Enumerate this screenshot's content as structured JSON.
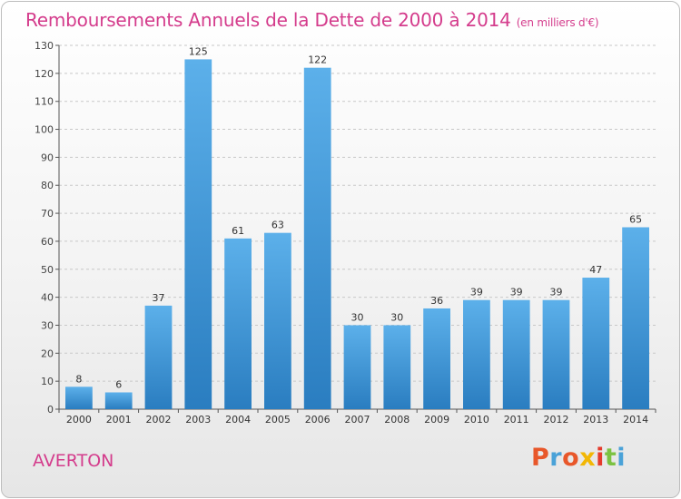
{
  "header": {
    "title": "Remboursements Annuels de la Dette de 2000 à 2014",
    "subtitle": "(en milliers d'€)"
  },
  "footer": {
    "commune": "AVERTON",
    "brand": "Proxiti"
  },
  "colors": {
    "title": "#d43c8c",
    "bar_top": "#5cb0ea",
    "bar_bottom": "#2a7dc0",
    "brand_letters": [
      "#e8572a",
      "#4aa2d8",
      "#e8572a",
      "#f2b705",
      "#e53b2c",
      "#7cc242",
      "#4aa2d8"
    ]
  },
  "chart_data": {
    "type": "bar",
    "title": "Remboursements Annuels de la Dette de 2000 à 2014",
    "subtitle": "(en milliers d'€)",
    "categories": [
      "2000",
      "2001",
      "2002",
      "2003",
      "2004",
      "2005",
      "2006",
      "2007",
      "2008",
      "2009",
      "2010",
      "2011",
      "2012",
      "2013",
      "2014"
    ],
    "values": [
      8,
      6,
      37,
      125,
      61,
      63,
      122,
      30,
      30,
      36,
      39,
      39,
      39,
      47,
      65
    ],
    "data_labels": [
      "8",
      "6",
      "37",
      "125",
      "61",
      "63",
      "122",
      "30",
      "30",
      "36",
      "39",
      "39",
      "39",
      "47",
      "65"
    ],
    "ylim": [
      0,
      130
    ],
    "yticks": [
      0,
      10,
      20,
      30,
      40,
      50,
      60,
      70,
      80,
      90,
      100,
      110,
      120,
      130
    ],
    "xlabel": "",
    "ylabel": "",
    "grid": true
  }
}
